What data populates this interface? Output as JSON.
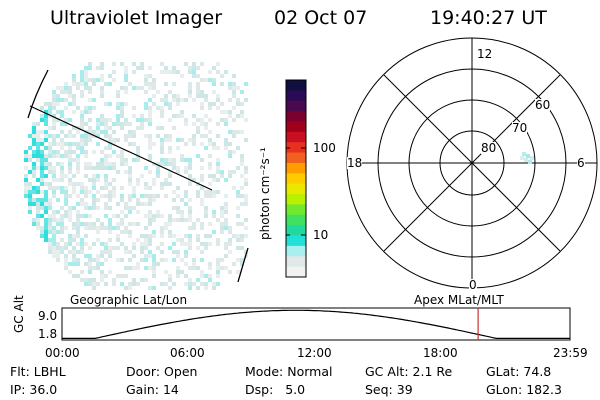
{
  "header": {
    "instrument": "Ultraviolet Imager",
    "date": "02 Oct 07",
    "time": "19:40:27 UT"
  },
  "colorbar": {
    "unit_label": "photon cm⁻²s⁻¹",
    "ticks": [
      "100",
      "10"
    ],
    "colors": [
      "#101040",
      "#2a0a55",
      "#4b0a4d",
      "#7a0030",
      "#a0001a",
      "#c81020",
      "#e83020",
      "#f06020",
      "#ff9c00",
      "#ffcc00",
      "#e8e800",
      "#b8f000",
      "#70e830",
      "#40e060",
      "#20d8a0",
      "#20e0d8",
      "#a8f0f0",
      "#e0e8e8",
      "#f2f2f2"
    ]
  },
  "geo_map": {
    "left_label": "Geographic Lat/Lon",
    "pixel_colors": [
      "#dde8e8",
      "#e8eeee",
      "#cfe6e6",
      "#a8ecec",
      "#60e4e4",
      "#30dede"
    ]
  },
  "polar_plot": {
    "right_label": "Apex MLat/MLT",
    "mlt_labels": {
      "top": "12",
      "bottom": "0",
      "left": "18",
      "right": "6"
    },
    "lat_labels": [
      "80",
      "70",
      "60"
    ]
  },
  "altitude_plot": {
    "ylabel": "GC Alt",
    "yticks": [
      "9.0",
      "1.8"
    ],
    "xticks": [
      "00:00",
      "06:00",
      "12:00",
      "18:00",
      "23:59"
    ],
    "curve_color": "#000000",
    "marker_color": "#c83030",
    "marker_time_fraction": 0.819
  },
  "info": {
    "flt_label": "Flt:",
    "flt_value": "LBHL",
    "ip_label": "IP:",
    "ip_value": "36.0",
    "door_label": "Door:",
    "door_value": "Open",
    "gain_label": "Gain:",
    "gain_value": "14",
    "mode_label": "Mode:",
    "mode_value": "Normal",
    "dsp_label": "Dsp:",
    "dsp_value": "5.0",
    "gcalt_label": "GC Alt:",
    "gcalt_value": "2.1 Re",
    "seq_label": "Seq:",
    "seq_value": "39",
    "glat_label": "GLat:",
    "glat_value": "74.8",
    "glon_label": "GLon:",
    "glon_value": "182.3"
  }
}
